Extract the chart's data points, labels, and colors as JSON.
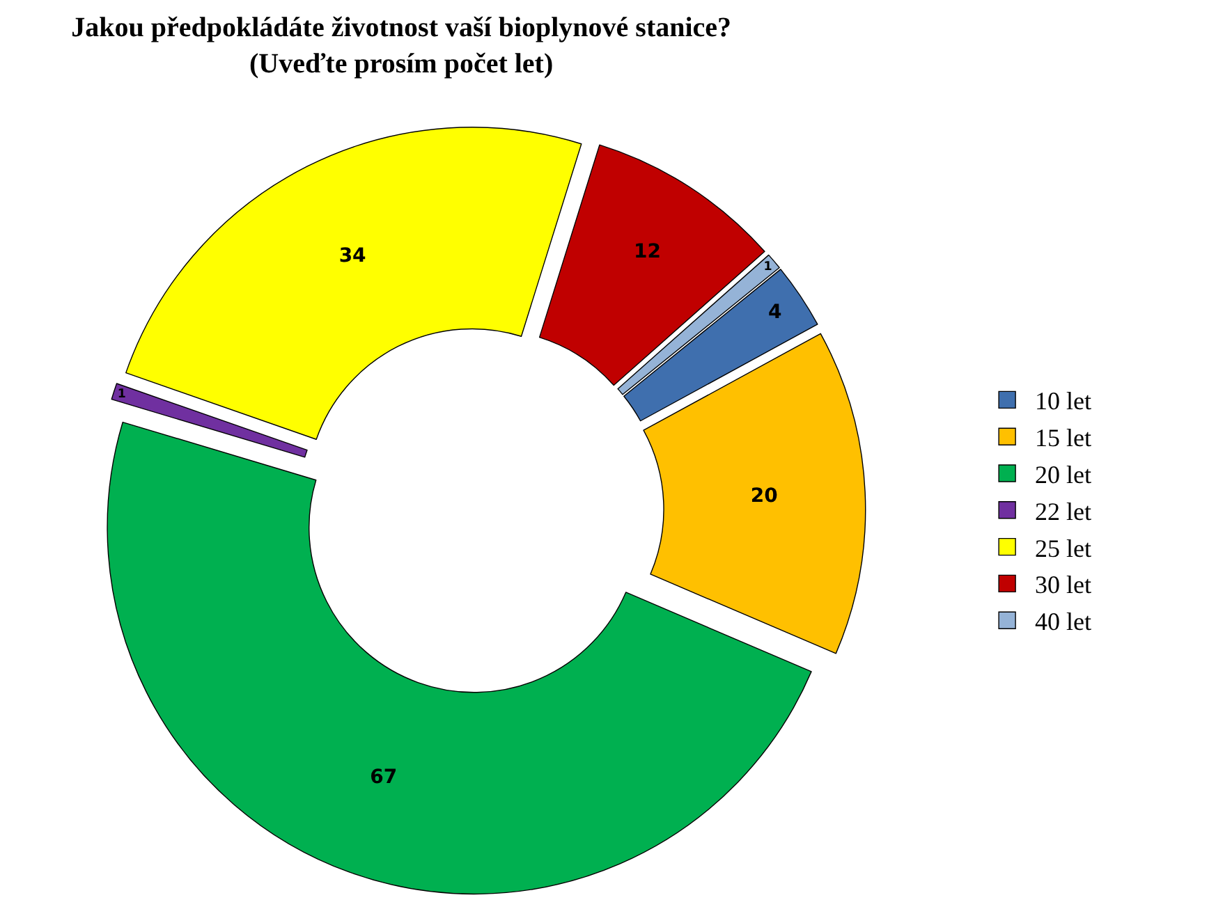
{
  "chart_data": {
    "type": "donut",
    "title": "Jakou předpokládáte životnost vaší bioplynové stanice?\n(Uveďte prosím počet let)",
    "categories": [
      "10 let",
      "15 let",
      "20 let",
      "22 let",
      "25 let",
      "30 let",
      "40 let"
    ],
    "values": [
      4,
      20,
      67,
      1,
      34,
      12,
      1
    ],
    "colors": [
      "#3f6fae",
      "#ffc000",
      "#00b050",
      "#7030a0",
      "#ffff00",
      "#c00000",
      "#95b3d7"
    ],
    "data_labels": true,
    "legend": "right"
  }
}
